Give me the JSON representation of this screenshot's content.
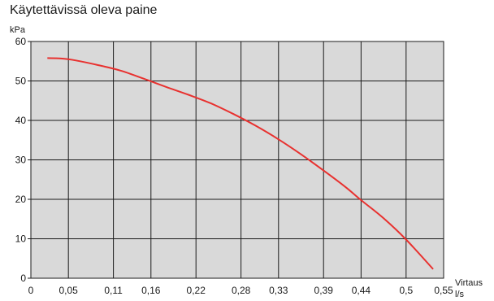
{
  "chart_data": {
    "type": "line",
    "title": "Käytettävissä oleva paine",
    "ylabel": "kPa",
    "xlabel_line1": "Virtaus",
    "xlabel_line2": "l/s",
    "xlim": [
      0,
      0.55
    ],
    "ylim": [
      0,
      60
    ],
    "x_ticks": [
      "0",
      "0,05",
      "0,11",
      "0,16",
      "0,22",
      "0,28",
      "0,33",
      "0,39",
      "0,44",
      "0,5",
      "0,55"
    ],
    "x_tick_values": [
      0,
      0.05,
      0.11,
      0.16,
      0.22,
      0.28,
      0.33,
      0.39,
      0.44,
      0.5,
      0.55
    ],
    "y_ticks": [
      "0",
      "10",
      "20",
      "30",
      "40",
      "50",
      "60"
    ],
    "y_tick_values": [
      0,
      10,
      20,
      30,
      40,
      50,
      60
    ],
    "grid": true,
    "colors": {
      "plot_bg": "#d9d9d9",
      "line": "#e8312f",
      "grid": "#1a1a1a"
    },
    "series": [
      {
        "x": [
          0.022,
          0.04,
          0.06,
          0.09,
          0.12,
          0.15,
          0.18,
          0.21,
          0.24,
          0.27,
          0.3,
          0.33,
          0.36,
          0.39,
          0.42,
          0.44,
          0.47,
          0.5,
          0.536
        ],
        "y": [
          55.8,
          55.7,
          55.2,
          54.0,
          52.6,
          50.6,
          48.5,
          46.5,
          44.3,
          41.6,
          38.6,
          35.2,
          31.4,
          27.3,
          23.0,
          19.8,
          15.2,
          9.8,
          2.3
        ]
      }
    ]
  }
}
